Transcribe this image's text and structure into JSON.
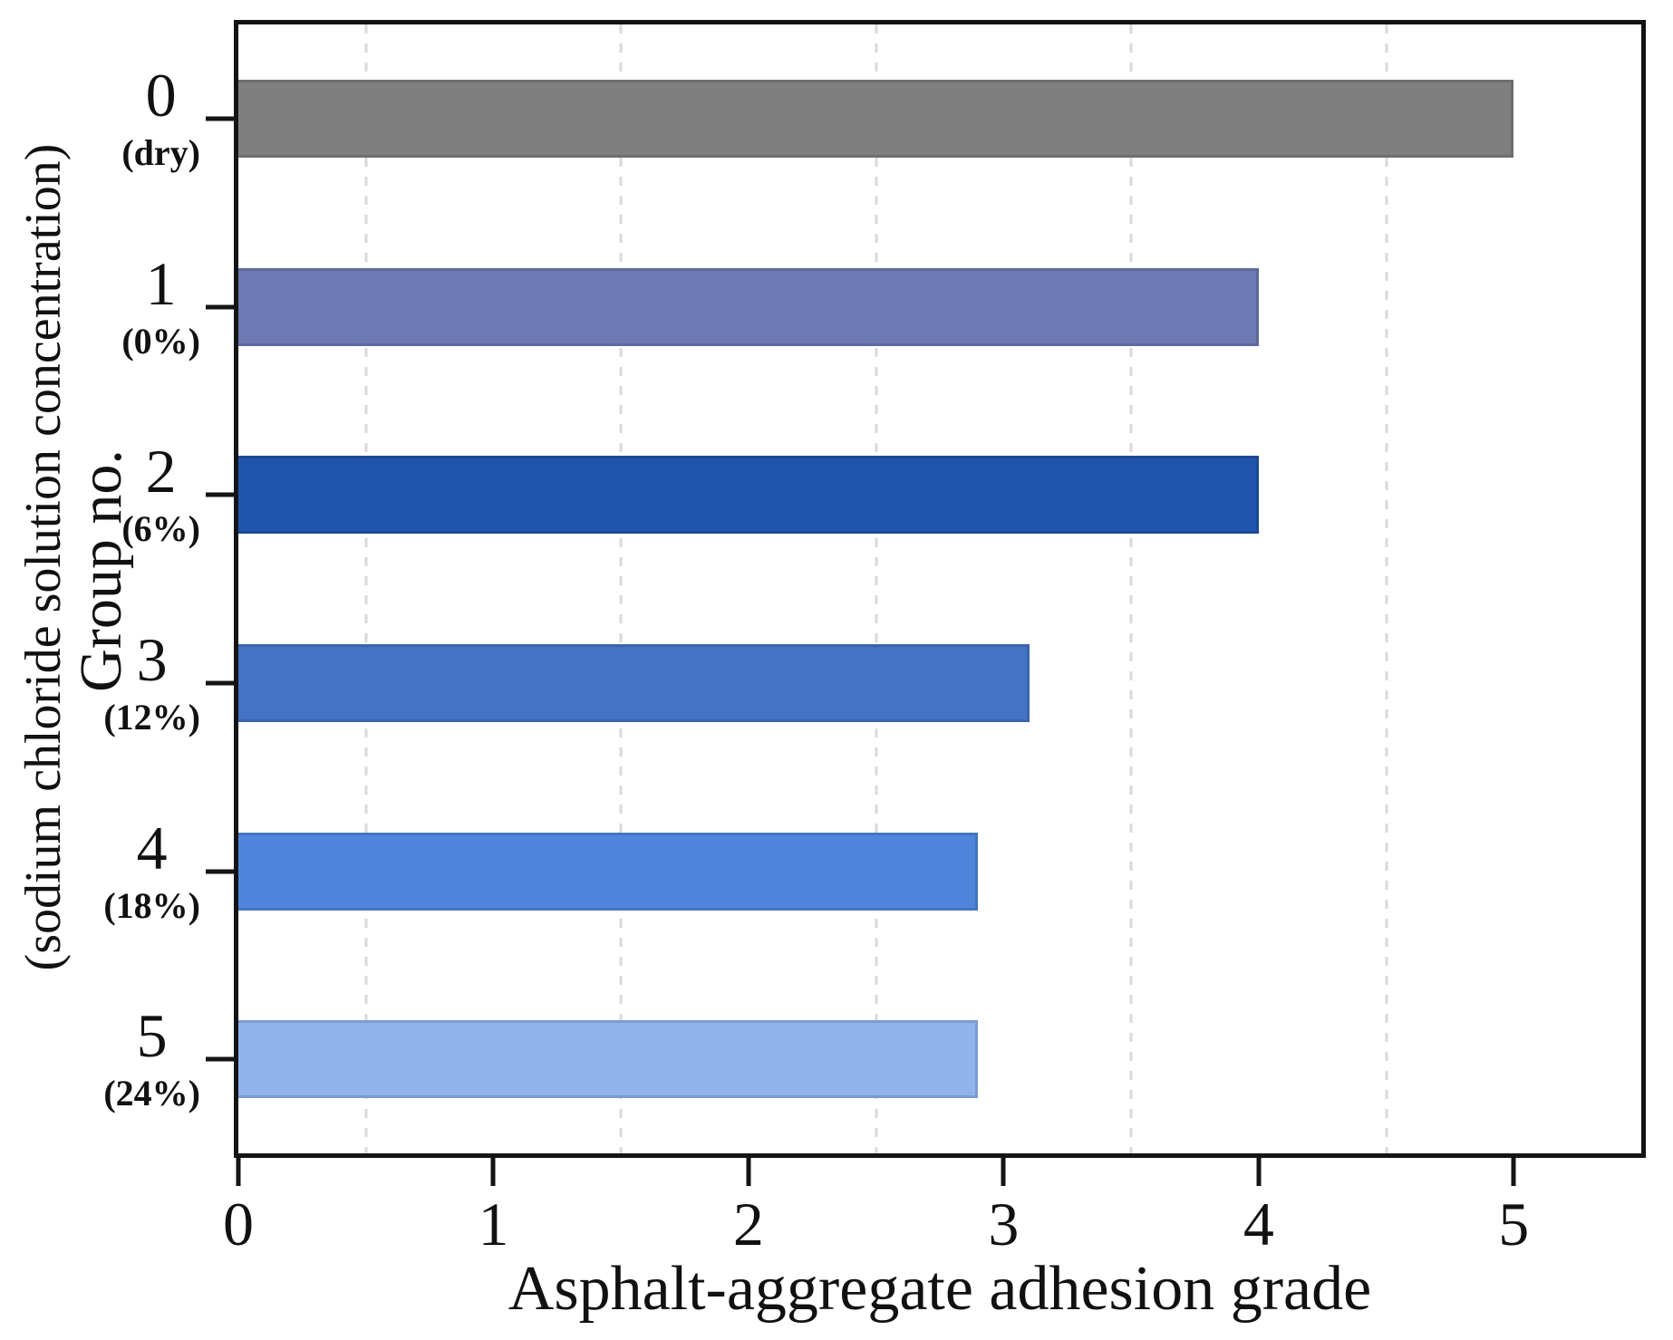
{
  "figure": {
    "background": "#ffffff",
    "axis_color": "#141414",
    "gridline_color": "#d9d9d9",
    "text_color": "#111111"
  },
  "chart_data": {
    "type": "bar",
    "orientation": "horizontal",
    "title": "",
    "xlabel": "Asphalt-aggregate adhesion grade",
    "ylabel": "Group no.",
    "ylabel_secondary": "(sodium chloride solution concentration)",
    "categories": [
      "0",
      "1",
      "2",
      "3",
      "4",
      "5"
    ],
    "category_sublabels": [
      "(dry)",
      "(0%)",
      "(6%)",
      "(12%)",
      "(18%)",
      "(24%)"
    ],
    "values": [
      5.0,
      4.0,
      4.0,
      3.1,
      2.9,
      2.9
    ],
    "bar_colors": [
      "#7f7f7f",
      "#6d79b2",
      "#2155ad",
      "#4473c5",
      "#4f86dc",
      "#8fb4ec"
    ],
    "xlim": [
      0,
      5.5
    ],
    "x_ticks": [
      "0",
      "1",
      "2",
      "3",
      "4",
      "5"
    ],
    "x_tick_values": [
      0,
      1,
      2,
      3,
      4,
      5
    ],
    "x_gridline_values": [
      0.5,
      1.5,
      2.5,
      3.5,
      4.5
    ],
    "grid": "vertical-dashed",
    "legend": "none"
  }
}
